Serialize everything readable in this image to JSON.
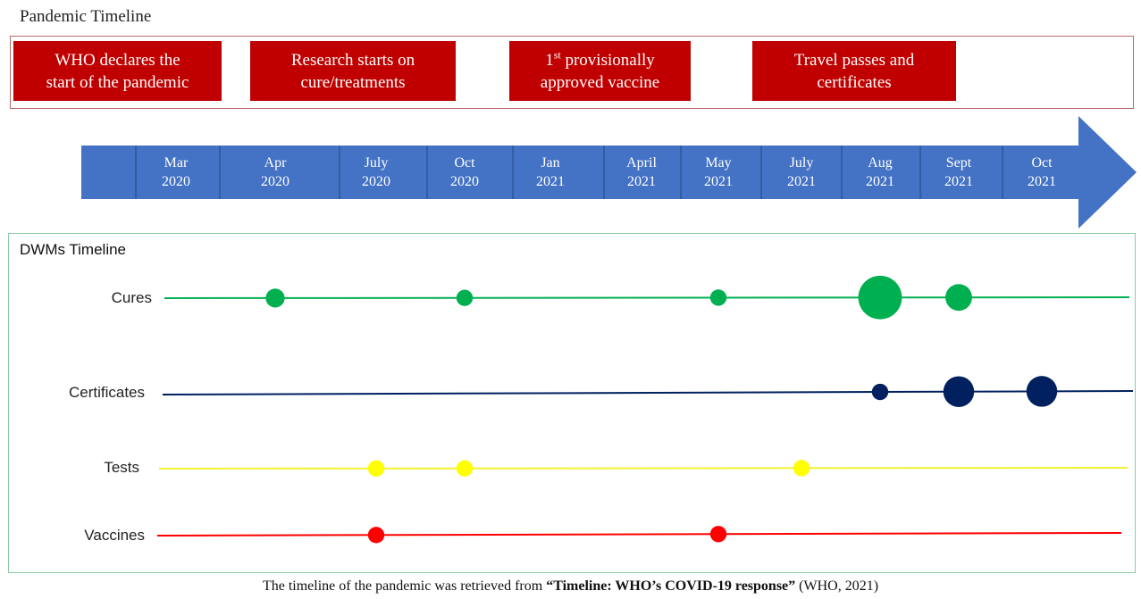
{
  "header": {
    "title": "Pandemic Timeline"
  },
  "events": [
    {
      "line1": "WHO declares the",
      "line2": "start of the pandemic"
    },
    {
      "line1": "Research starts on",
      "line2": "cure/treatments"
    },
    {
      "pre": "1",
      "sup": "st",
      "post": " provisionally",
      "line2": "approved vaccine"
    },
    {
      "line1": "Travel passes and",
      "line2": "certificates"
    }
  ],
  "timeline": {
    "months": [
      {
        "month": "Mar",
        "year": "2020"
      },
      {
        "month": "Apr",
        "year": "2020"
      },
      {
        "month": "July",
        "year": "2020"
      },
      {
        "month": "Oct",
        "year": "2020"
      },
      {
        "month": "Jan",
        "year": "2021"
      },
      {
        "month": "April",
        "year": "2021"
      },
      {
        "month": "May",
        "year": "2021"
      },
      {
        "month": "July",
        "year": "2021"
      },
      {
        "month": "Aug",
        "year": "2021"
      },
      {
        "month": "Sept",
        "year": "2021"
      },
      {
        "month": "Oct",
        "year": "2021"
      }
    ],
    "color": "#4472c4"
  },
  "dwm": {
    "title": "DWMs Timeline",
    "rows": [
      {
        "label": "Cures",
        "color": "#00b050",
        "points": [
          {
            "month": "Apr 2020",
            "size": 2
          },
          {
            "month": "Oct 2020",
            "size": 1.5
          },
          {
            "month": "May 2021",
            "size": 1.5
          },
          {
            "month": "Aug 2021",
            "size": 8
          },
          {
            "month": "Sept 2021",
            "size": 3
          }
        ]
      },
      {
        "label": "Certificates",
        "color": "#002060",
        "points": [
          {
            "month": "Aug 2021",
            "size": 1.5
          },
          {
            "month": "Sept 2021",
            "size": 4
          },
          {
            "month": "Oct 2021",
            "size": 4
          }
        ]
      },
      {
        "label": "Tests",
        "color": "#ffff00",
        "points": [
          {
            "month": "July 2020",
            "size": 1.5
          },
          {
            "month": "Oct 2020",
            "size": 1.5
          },
          {
            "month": "July 2021",
            "size": 1.5
          }
        ]
      },
      {
        "label": "Vaccines",
        "color": "#ff0000",
        "points": [
          {
            "month": "July 2020",
            "size": 1.5
          },
          {
            "month": "May 2021",
            "size": 1.5
          }
        ]
      }
    ]
  },
  "caption": {
    "prefix": "The timeline  of the pandemic was retrieved  from ",
    "bold": "“Timeline: WHO’s COVID-19 response”",
    "suffix": " (WHO, 2021)"
  }
}
